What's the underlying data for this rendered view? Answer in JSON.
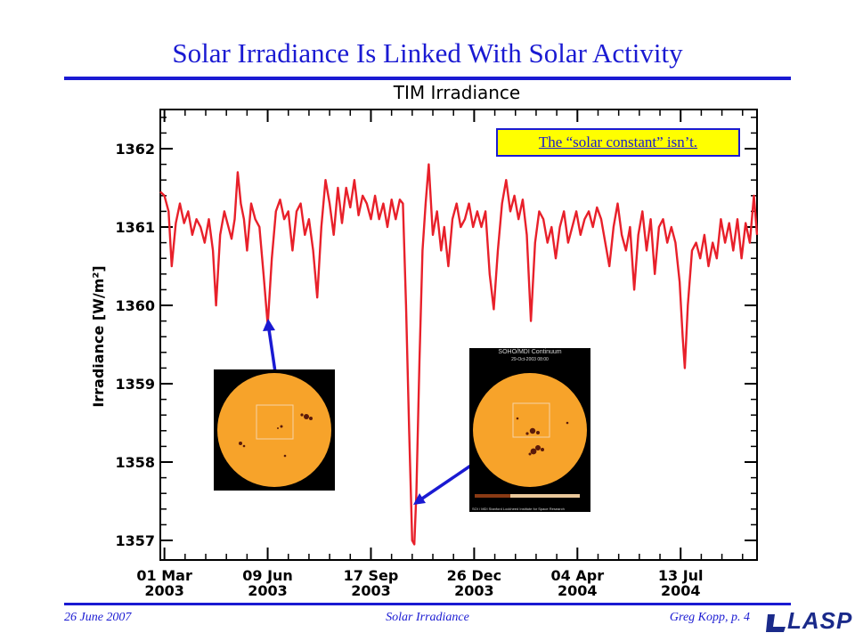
{
  "slide": {
    "title": "Solar Irradiance Is Linked With Solar Activity",
    "footer_date": "26 June 2007",
    "footer_center": "Solar Irradiance",
    "footer_author": "Greg Kopp, p. 4",
    "logo_text": "LASP"
  },
  "callout": {
    "text": "The “solar constant” isn’t."
  },
  "images": {
    "sun_right_header": "SOHO/MDI Continuum",
    "sun_right_date": "29-Oct-2003 08:00",
    "sun_right_credit": "SOI / MDI        Stanford Lockheed Institute for Space Research"
  },
  "colors": {
    "accent": "#1a1ad2",
    "series": "#e8202a",
    "callout_fill": "#ffff00",
    "sun": "#f7a32a"
  },
  "chart_data": {
    "type": "line",
    "title": "TIM Irradiance",
    "xlabel": "",
    "ylabel": "Irradiance [W/m²]",
    "ylim": [
      1356.75,
      1362.5
    ],
    "yticks": [
      1357,
      1358,
      1359,
      1360,
      1361,
      1362
    ],
    "xlim": [
      "2003-02-25",
      "2004-09-25"
    ],
    "xticks": [
      {
        "date": "2003-03-01",
        "label": [
          "01 Mar",
          "2003"
        ]
      },
      {
        "date": "2003-06-09",
        "label": [
          "09 Jun",
          "2003"
        ]
      },
      {
        "date": "2003-09-17",
        "label": [
          "17 Sep",
          "2003"
        ]
      },
      {
        "date": "2003-12-26",
        "label": [
          "26 Dec",
          "2003"
        ]
      },
      {
        "date": "2004-04-04",
        "label": [
          "04 Apr",
          "2004"
        ]
      },
      {
        "date": "2004-07-13",
        "label": [
          "13 Jul",
          "2004"
        ]
      }
    ],
    "series": [
      {
        "name": "",
        "points": [
          [
            "2003-02-25",
            1361.45
          ],
          [
            "2003-03-01",
            1361.4
          ],
          [
            "2003-03-05",
            1361.2
          ],
          [
            "2003-03-08",
            1360.5
          ],
          [
            "2003-03-12",
            1361.05
          ],
          [
            "2003-03-16",
            1361.3
          ],
          [
            "2003-03-20",
            1361.05
          ],
          [
            "2003-03-24",
            1361.2
          ],
          [
            "2003-03-28",
            1360.9
          ],
          [
            "2003-04-01",
            1361.1
          ],
          [
            "2003-04-05",
            1361.0
          ],
          [
            "2003-04-09",
            1360.8
          ],
          [
            "2003-04-13",
            1361.1
          ],
          [
            "2003-04-17",
            1360.7
          ],
          [
            "2003-04-20",
            1360.0
          ],
          [
            "2003-04-24",
            1360.9
          ],
          [
            "2003-04-28",
            1361.2
          ],
          [
            "2003-05-02",
            1361.0
          ],
          [
            "2003-05-05",
            1360.85
          ],
          [
            "2003-05-08",
            1361.1
          ],
          [
            "2003-05-11",
            1361.7
          ],
          [
            "2003-05-14",
            1361.3
          ],
          [
            "2003-05-17",
            1361.1
          ],
          [
            "2003-05-20",
            1360.7
          ],
          [
            "2003-05-24",
            1361.3
          ],
          [
            "2003-05-28",
            1361.1
          ],
          [
            "2003-06-01",
            1361.0
          ],
          [
            "2003-06-05",
            1360.4
          ],
          [
            "2003-06-09",
            1359.75
          ],
          [
            "2003-06-13",
            1360.6
          ],
          [
            "2003-06-17",
            1361.2
          ],
          [
            "2003-06-21",
            1361.35
          ],
          [
            "2003-06-25",
            1361.1
          ],
          [
            "2003-06-29",
            1361.2
          ],
          [
            "2003-07-03",
            1360.7
          ],
          [
            "2003-07-07",
            1361.2
          ],
          [
            "2003-07-11",
            1361.3
          ],
          [
            "2003-07-15",
            1360.9
          ],
          [
            "2003-07-19",
            1361.1
          ],
          [
            "2003-07-23",
            1360.7
          ],
          [
            "2003-07-27",
            1360.1
          ],
          [
            "2003-07-31",
            1361.0
          ],
          [
            "2003-08-04",
            1361.6
          ],
          [
            "2003-08-08",
            1361.3
          ],
          [
            "2003-08-12",
            1360.9
          ],
          [
            "2003-08-16",
            1361.5
          ],
          [
            "2003-08-20",
            1361.05
          ],
          [
            "2003-08-24",
            1361.5
          ],
          [
            "2003-08-28",
            1361.25
          ],
          [
            "2003-09-01",
            1361.6
          ],
          [
            "2003-09-05",
            1361.15
          ],
          [
            "2003-09-09",
            1361.4
          ],
          [
            "2003-09-13",
            1361.3
          ],
          [
            "2003-09-17",
            1361.1
          ],
          [
            "2003-09-21",
            1361.4
          ],
          [
            "2003-09-25",
            1361.1
          ],
          [
            "2003-09-29",
            1361.3
          ],
          [
            "2003-10-03",
            1361.0
          ],
          [
            "2003-10-07",
            1361.35
          ],
          [
            "2003-10-11",
            1361.1
          ],
          [
            "2003-10-15",
            1361.35
          ],
          [
            "2003-10-18",
            1361.3
          ],
          [
            "2003-10-21",
            1360.0
          ],
          [
            "2003-10-24",
            1358.4
          ],
          [
            "2003-10-27",
            1357.0
          ],
          [
            "2003-10-29",
            1356.95
          ],
          [
            "2003-10-31",
            1357.6
          ],
          [
            "2003-11-03",
            1359.3
          ],
          [
            "2003-11-06",
            1360.7
          ],
          [
            "2003-11-09",
            1361.3
          ],
          [
            "2003-11-12",
            1361.8
          ],
          [
            "2003-11-16",
            1360.9
          ],
          [
            "2003-11-20",
            1361.2
          ],
          [
            "2003-11-24",
            1360.7
          ],
          [
            "2003-11-27",
            1361.0
          ],
          [
            "2003-12-01",
            1360.5
          ],
          [
            "2003-12-05",
            1361.1
          ],
          [
            "2003-12-09",
            1361.3
          ],
          [
            "2003-12-13",
            1361.0
          ],
          [
            "2003-12-17",
            1361.1
          ],
          [
            "2003-12-21",
            1361.3
          ],
          [
            "2003-12-25",
            1361.0
          ],
          [
            "2003-12-29",
            1361.2
          ],
          [
            "2004-01-02",
            1361.0
          ],
          [
            "2004-01-06",
            1361.2
          ],
          [
            "2004-01-10",
            1360.4
          ],
          [
            "2004-01-14",
            1359.95
          ],
          [
            "2004-01-18",
            1360.7
          ],
          [
            "2004-01-22",
            1361.3
          ],
          [
            "2004-01-26",
            1361.6
          ],
          [
            "2004-01-30",
            1361.2
          ],
          [
            "2004-02-03",
            1361.4
          ],
          [
            "2004-02-07",
            1361.1
          ],
          [
            "2004-02-11",
            1361.35
          ],
          [
            "2004-02-15",
            1360.9
          ],
          [
            "2004-02-19",
            1359.8
          ],
          [
            "2004-02-23",
            1360.8
          ],
          [
            "2004-02-27",
            1361.2
          ],
          [
            "2004-03-02",
            1361.1
          ],
          [
            "2004-03-06",
            1360.8
          ],
          [
            "2004-03-10",
            1361.0
          ],
          [
            "2004-03-14",
            1360.6
          ],
          [
            "2004-03-18",
            1361.0
          ],
          [
            "2004-03-22",
            1361.2
          ],
          [
            "2004-03-26",
            1360.8
          ],
          [
            "2004-03-30",
            1361.0
          ],
          [
            "2004-04-03",
            1361.2
          ],
          [
            "2004-04-07",
            1360.9
          ],
          [
            "2004-04-11",
            1361.1
          ],
          [
            "2004-04-15",
            1361.2
          ],
          [
            "2004-04-19",
            1361.0
          ],
          [
            "2004-04-23",
            1361.25
          ],
          [
            "2004-04-27",
            1361.1
          ],
          [
            "2004-05-01",
            1360.8
          ],
          [
            "2004-05-05",
            1360.5
          ],
          [
            "2004-05-09",
            1361.0
          ],
          [
            "2004-05-13",
            1361.3
          ],
          [
            "2004-05-17",
            1360.9
          ],
          [
            "2004-05-21",
            1360.7
          ],
          [
            "2004-05-25",
            1361.0
          ],
          [
            "2004-05-29",
            1360.2
          ],
          [
            "2004-06-02",
            1360.9
          ],
          [
            "2004-06-06",
            1361.2
          ],
          [
            "2004-06-10",
            1360.7
          ],
          [
            "2004-06-14",
            1361.1
          ],
          [
            "2004-06-18",
            1360.4
          ],
          [
            "2004-06-22",
            1361.0
          ],
          [
            "2004-06-26",
            1361.1
          ],
          [
            "2004-06-30",
            1360.8
          ],
          [
            "2004-07-04",
            1361.0
          ],
          [
            "2004-07-08",
            1360.8
          ],
          [
            "2004-07-12",
            1360.3
          ],
          [
            "2004-07-15",
            1359.6
          ],
          [
            "2004-07-17",
            1359.2
          ],
          [
            "2004-07-20",
            1360.0
          ],
          [
            "2004-07-24",
            1360.7
          ],
          [
            "2004-07-28",
            1360.8
          ],
          [
            "2004-08-01",
            1360.6
          ],
          [
            "2004-08-05",
            1360.9
          ],
          [
            "2004-08-09",
            1360.5
          ],
          [
            "2004-08-13",
            1360.8
          ],
          [
            "2004-08-17",
            1360.6
          ],
          [
            "2004-08-21",
            1361.1
          ],
          [
            "2004-08-25",
            1360.8
          ],
          [
            "2004-08-29",
            1361.05
          ],
          [
            "2004-09-02",
            1360.7
          ],
          [
            "2004-09-06",
            1361.1
          ],
          [
            "2004-09-10",
            1360.6
          ],
          [
            "2004-09-14",
            1361.05
          ],
          [
            "2004-09-18",
            1360.8
          ],
          [
            "2004-09-22",
            1361.4
          ],
          [
            "2004-09-25",
            1360.9
          ]
        ]
      }
    ]
  }
}
